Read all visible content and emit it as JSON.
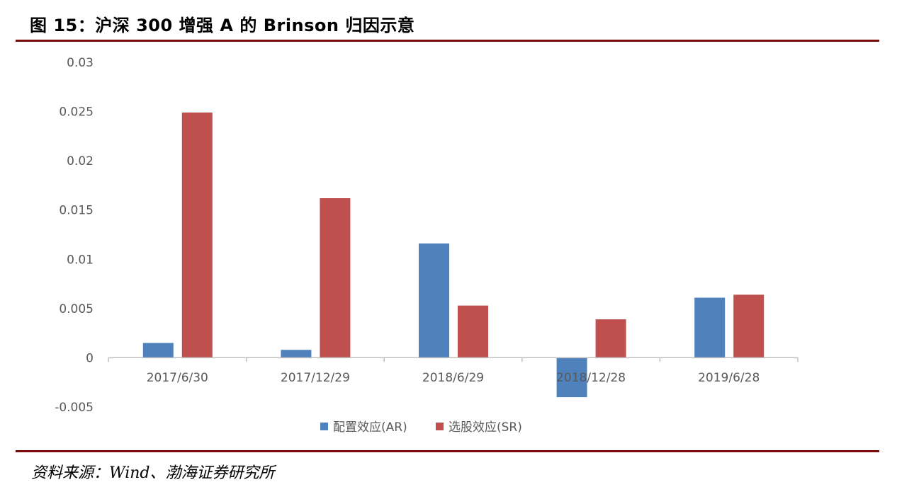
{
  "figure": {
    "title": "图 15：沪深 300 增强 A 的 Brinson 归因示意",
    "source": "资料来源：Wind、渤海证券研究所"
  },
  "colors": {
    "rule": "#7b0a0a",
    "series_ar": "#4f81bd",
    "series_sr": "#c0504d",
    "axis": "#bfbfbf",
    "tick_text": "#595959"
  },
  "chart_data": {
    "type": "bar",
    "categories": [
      "2017/6/30",
      "2017/12/29",
      "2018/6/29",
      "2018/12/28",
      "2019/6/28"
    ],
    "series": [
      {
        "name": "配置效应(AR)",
        "values": [
          0.0015,
          0.0008,
          0.0116,
          -0.004,
          0.0061
        ]
      },
      {
        "name": "选股效应(SR)",
        "values": [
          0.0249,
          0.0162,
          0.0053,
          0.0039,
          0.0064
        ]
      }
    ],
    "y_ticks": [
      "0.03",
      "0.025",
      "0.02",
      "0.015",
      "0.01",
      "0.005",
      "0",
      "-0.005"
    ],
    "ylim": [
      -0.005,
      0.03
    ],
    "grid": false,
    "legend_position": "bottom"
  }
}
